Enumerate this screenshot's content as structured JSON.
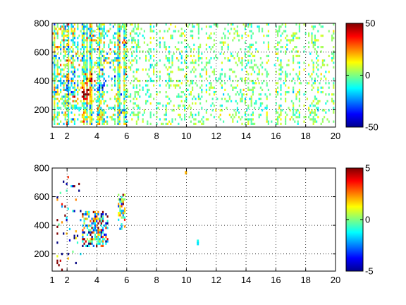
{
  "chart_data": [
    {
      "type": "heatmap",
      "title": "",
      "xlabel": "",
      "ylabel": "",
      "xlim": [
        1,
        20
      ],
      "ylim": [
        80,
        800
      ],
      "xticks": [
        1,
        2,
        4,
        6,
        8,
        10,
        12,
        14,
        16,
        18,
        20
      ],
      "yticks": [
        200,
        400,
        600,
        800
      ],
      "grid": true,
      "colorbar": {
        "range": [
          -50,
          50
        ],
        "ticks": [
          -50,
          0,
          50
        ],
        "colormap": "jet"
      },
      "density_profile": [
        {
          "x": [
            1,
            6
          ],
          "fill": 0.6,
          "value_sigma": 0.3
        },
        {
          "x": [
            6,
            20
          ],
          "fill": 0.2,
          "value_sigma": 0.15
        }
      ],
      "hotspots": [
        {
          "x": 3.3,
          "y": 320,
          "value": 38
        },
        {
          "x": 3.6,
          "y": 420,
          "value": 30
        },
        {
          "x": 4.4,
          "y": 380,
          "value": -34
        },
        {
          "x": 3.0,
          "y": 300,
          "value": 26
        },
        {
          "x": 2.1,
          "y": 350,
          "value": -20
        },
        {
          "x": 5.0,
          "y": 440,
          "value": -24
        }
      ]
    },
    {
      "type": "heatmap",
      "title": "",
      "xlabel": "",
      "ylabel": "",
      "xlim": [
        1,
        20
      ],
      "ylim": [
        80,
        800
      ],
      "xticks": [
        1,
        2,
        4,
        6,
        8,
        10,
        12,
        14,
        16,
        18,
        20
      ],
      "yticks": [
        200,
        400,
        600,
        800
      ],
      "grid": true,
      "colorbar": {
        "range": [
          -5,
          5
        ],
        "ticks": [
          -5,
          0,
          5
        ],
        "colormap": "jet"
      },
      "clusters": [
        {
          "x": [
            3.0,
            4.7
          ],
          "y": [
            250,
            500
          ],
          "fill": 0.55,
          "value_sigma": 0.35
        },
        {
          "x": [
            5.4,
            5.9
          ],
          "y": [
            380,
            620
          ],
          "fill": 0.5,
          "value_sigma": 0.25
        },
        {
          "x": [
            1.3,
            2.9
          ],
          "y": [
            90,
            760
          ],
          "fill": 0.07,
          "value_sigma": 0.5
        }
      ],
      "scattered_points": [
        {
          "x": 9.9,
          "y": 780,
          "value": 2
        },
        {
          "x": 10.7,
          "y": 300,
          "value": -1
        },
        {
          "x": 10.7,
          "y": 285,
          "value": -1.5
        }
      ]
    }
  ]
}
